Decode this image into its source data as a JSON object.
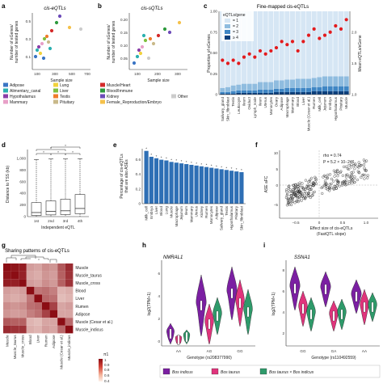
{
  "figure": {
    "panels": {
      "a": {
        "letter": "a",
        "title": "cis-eQTLs",
        "ylabel": "Number of eGenes/\nnumber of tested genes",
        "xlabel": "Sample size",
        "xticks": [
          "100",
          "300",
          "500",
          "700"
        ],
        "yticks": [
          "0.1",
          "0.3",
          "0.5"
        ]
      },
      "b": {
        "letter": "b",
        "title": "cis-sQTLs",
        "ylabel": "Number of sGenes/\nnumber of tested genes",
        "xlabel": "Sample size",
        "xticks": [
          "100",
          "200",
          "300"
        ],
        "yticks": [
          "0.05",
          "0.10",
          "0.15",
          "0.20"
        ]
      },
      "c": {
        "letter": "c",
        "title": "Fine-mapped cis-eQTLs",
        "ylabel": "Proportion of eGenes",
        "ylabel_right": "Mean eQTLs/eGene",
        "yticks": [
          "0",
          "0.25",
          "0.50",
          "0.75",
          "1.00"
        ],
        "yticks_right": [
          "1.0",
          "1.5",
          "2.0"
        ],
        "legend_title": "eQTLs/gene",
        "legend": [
          "= 1",
          "= 2",
          "= 3",
          "≥ 4"
        ]
      },
      "d": {
        "letter": "d",
        "ylabel": "Distance to TSS (kb)",
        "xlabel": "Independent eQTL",
        "yticks": [
          "0",
          "200",
          "400",
          "600",
          "800",
          "1,000"
        ],
        "categories": [
          "1st",
          "2nd",
          "3rd",
          "4th"
        ],
        "sig": [
          "*",
          "*",
          "*",
          "*",
          "*"
        ]
      },
      "e": {
        "letter": "e",
        "ylabel": "Percentage of cis-eQTLs\nthat are also ASEs",
        "yticks": [
          "0",
          "0.2",
          "0.4",
          "0.6"
        ]
      },
      "f": {
        "letter": "f",
        "ylabel": "ASE aFC",
        "xlabel": "Effect size of cis-eQTLs\n(FastQTL slope)",
        "rho": "rho = 0.74",
        "pval": "P = 5.2 × 10−246",
        "xticks": [
          "−0.5",
          "0",
          "0.5",
          "1.0"
        ],
        "yticks": [
          "−5",
          "0",
          "5",
          "10"
        ]
      },
      "g": {
        "letter": "g",
        "title": "Sharing patterns of cis-eQTLs",
        "legend_title": "π1",
        "legend_values": [
          "1",
          "0.9",
          "0.8",
          "0.6",
          "0.4"
        ]
      },
      "h": {
        "letter": "h",
        "gene": "NMRAL1",
        "ylabel": "log2(TPM+1)",
        "xlabel": "Genotype (rs208377990)",
        "genotypes": [
          "AA",
          "AG",
          "GG"
        ],
        "yticks": [
          "0",
          "2",
          "4",
          "6"
        ]
      },
      "i": {
        "letter": "i",
        "gene": "SSNA1",
        "ylabel": "log2(TPM+1)",
        "xlabel": "Genotype (rs110492559)",
        "genotypes": [
          "GG",
          "GA",
          "AA"
        ],
        "yticks": [
          "2",
          "4",
          "6",
          "8"
        ]
      }
    },
    "tissue_legend": [
      {
        "label": "Adipose",
        "color": "#3a75c4"
      },
      {
        "label": "Alimentary_canal",
        "color": "#2bb0b0"
      },
      {
        "label": "Hypothalamus",
        "color": "#8b3fa8"
      },
      {
        "label": "Mammary",
        "color": "#e8a0c8"
      },
      {
        "label": "Lung",
        "color": "#f2d23c"
      },
      {
        "label": "Liver",
        "color": "#7fbf3f"
      },
      {
        "label": "Testis",
        "color": "#f07c2b"
      },
      {
        "label": "Pituitary",
        "color": "#c9b98a"
      },
      {
        "label": "Muscle/Heart",
        "color": "#d42a2a"
      },
      {
        "label": "Blood/Immune",
        "color": "#2e9a3e"
      },
      {
        "label": "Kidney",
        "color": "#6d4bb8"
      },
      {
        "label": "Female_Reproduction/Embryo",
        "color": "#f5c14a"
      },
      {
        "label": "Other",
        "color": "#cccccc"
      }
    ],
    "violin_legend": [
      {
        "label": "Bos indicus",
        "color": "#7b1fa2"
      },
      {
        "label": "Bos taurus",
        "color": "#e0347c"
      },
      {
        "label": "Bos taurus × Bos indicus",
        "color": "#2e9a6a"
      }
    ]
  },
  "chart_data": [
    {
      "panel": "c",
      "type": "bar",
      "categories": [
        "Salivary_gland",
        "Skin_fibroblast",
        "Testis",
        "Leukocyte",
        "Ileum",
        "Oviduct",
        "Lymph_node",
        "Ileum",
        "Uterus",
        "Monocytes",
        "Ovary",
        "Adipose",
        "Macrophage",
        "Mammary",
        "Blood",
        "Liver",
        "Muscle (Cesar et al.)",
        "Rumen",
        "Milk_cell",
        "Jejunum",
        "Embryo",
        "Hypothalamus",
        "Pituitary",
        "Muscle"
      ],
      "series": [
        {
          "name": "= 1",
          "values": [
            0.16,
            0.2,
            0.24,
            0.24,
            0.27,
            0.28,
            0.3,
            0.33,
            0.35,
            0.35,
            0.38,
            0.4,
            0.4,
            0.43,
            0.45,
            0.46,
            0.48,
            0.5,
            0.52,
            0.55,
            0.58,
            0.6,
            0.62,
            0.65
          ]
        },
        {
          "name": "= 2",
          "values": [
            0.05,
            0.06,
            0.07,
            0.07,
            0.08,
            0.08,
            0.08,
            0.09,
            0.09,
            0.09,
            0.1,
            0.1,
            0.1,
            0.1,
            0.11,
            0.11,
            0.11,
            0.11,
            0.12,
            0.12,
            0.12,
            0.12,
            0.12,
            0.12
          ]
        },
        {
          "name": "= 3",
          "values": [
            0.02,
            0.02,
            0.03,
            0.03,
            0.03,
            0.03,
            0.03,
            0.04,
            0.04,
            0.04,
            0.04,
            0.04,
            0.05,
            0.05,
            0.05,
            0.05,
            0.05,
            0.05,
            0.05,
            0.06,
            0.06,
            0.06,
            0.06,
            0.06
          ]
        },
        {
          "name": "≥ 4",
          "values": [
            0.01,
            0.01,
            0.01,
            0.02,
            0.02,
            0.02,
            0.02,
            0.02,
            0.02,
            0.02,
            0.03,
            0.03,
            0.03,
            0.03,
            0.03,
            0.03,
            0.03,
            0.04,
            0.04,
            0.04,
            0.04,
            0.04,
            0.04,
            0.04
          ]
        }
      ],
      "mean": [
        1.55,
        1.5,
        1.55,
        1.5,
        1.6,
        1.65,
        1.6,
        1.7,
        1.65,
        1.7,
        1.75,
        1.85,
        1.8,
        1.85,
        1.7,
        1.85,
        1.95,
        2.05,
        1.9,
        1.95,
        2.0,
        2.1,
        2.05,
        2.2
      ],
      "ylim": [
        0,
        1
      ],
      "ylim_right": [
        1.0,
        2.2
      ]
    },
    {
      "panel": "e",
      "type": "bar",
      "categories": [
        "Milk_cell",
        "Embryo",
        "Liver",
        "Blood",
        "Lung",
        "Muscle",
        "Macrophage",
        "Jejunum",
        "Ileum",
        "Mammary",
        "Uterus",
        "Kidney",
        "Rumen",
        "Monocytes",
        "Adipose",
        "Salivary_gland",
        "Testis",
        "Hypothalamus",
        "Pituitary",
        "Skin_fibroblast"
      ],
      "values": [
        0.72,
        0.64,
        0.62,
        0.6,
        0.59,
        0.57,
        0.56,
        0.55,
        0.54,
        0.53,
        0.52,
        0.51,
        0.5,
        0.49,
        0.48,
        0.47,
        0.46,
        0.45,
        0.44,
        0.43
      ],
      "ylim": [
        0,
        0.75
      ]
    },
    {
      "panel": "d",
      "type": "box",
      "categories": [
        "1st",
        "2nd",
        "3rd",
        "4th"
      ],
      "box": [
        {
          "min": 0,
          "q1": 20,
          "median": 70,
          "q3": 240,
          "max": 980
        },
        {
          "min": 0,
          "q1": 30,
          "median": 90,
          "q3": 270,
          "max": 990
        },
        {
          "min": 0,
          "q1": 35,
          "median": 100,
          "q3": 300,
          "max": 990
        },
        {
          "min": 0,
          "q1": 50,
          "median": 140,
          "q3": 380,
          "max": 995
        }
      ],
      "ylim": [
        0,
        1000
      ]
    },
    {
      "panel": "g",
      "type": "heatmap",
      "rows": [
        "Muscle",
        "Muscle_taurus",
        "Muscle_cross",
        "Blood",
        "Liver",
        "Rumen",
        "Adipose",
        "Muscle (Cesar et al.)",
        "Muscle_indicus"
      ],
      "cols": [
        "Muscle",
        "Muscle_taurus",
        "Muscle_cross",
        "Blood",
        "Liver",
        "Rumen",
        "Adipose",
        "Muscle (Cesar et al.)",
        "Muscle_indicus"
      ],
      "values": [
        [
          1.0,
          0.98,
          0.96,
          0.62,
          0.6,
          0.66,
          0.64,
          0.8,
          0.92
        ],
        [
          0.98,
          1.0,
          0.95,
          0.6,
          0.58,
          0.64,
          0.62,
          0.78,
          0.9
        ],
        [
          0.96,
          0.95,
          1.0,
          0.62,
          0.6,
          0.66,
          0.63,
          0.78,
          0.9
        ],
        [
          0.62,
          0.6,
          0.62,
          1.0,
          0.72,
          0.74,
          0.7,
          0.56,
          0.58
        ],
        [
          0.6,
          0.58,
          0.6,
          0.72,
          1.0,
          0.76,
          0.74,
          0.54,
          0.56
        ],
        [
          0.66,
          0.64,
          0.66,
          0.74,
          0.76,
          1.0,
          0.86,
          0.6,
          0.62
        ],
        [
          0.64,
          0.62,
          0.63,
          0.7,
          0.74,
          0.86,
          1.0,
          0.6,
          0.6
        ],
        [
          0.8,
          0.78,
          0.78,
          0.56,
          0.54,
          0.6,
          0.6,
          1.0,
          0.76
        ],
        [
          0.92,
          0.9,
          0.9,
          0.58,
          0.56,
          0.62,
          0.6,
          0.76,
          1.0
        ]
      ]
    }
  ]
}
